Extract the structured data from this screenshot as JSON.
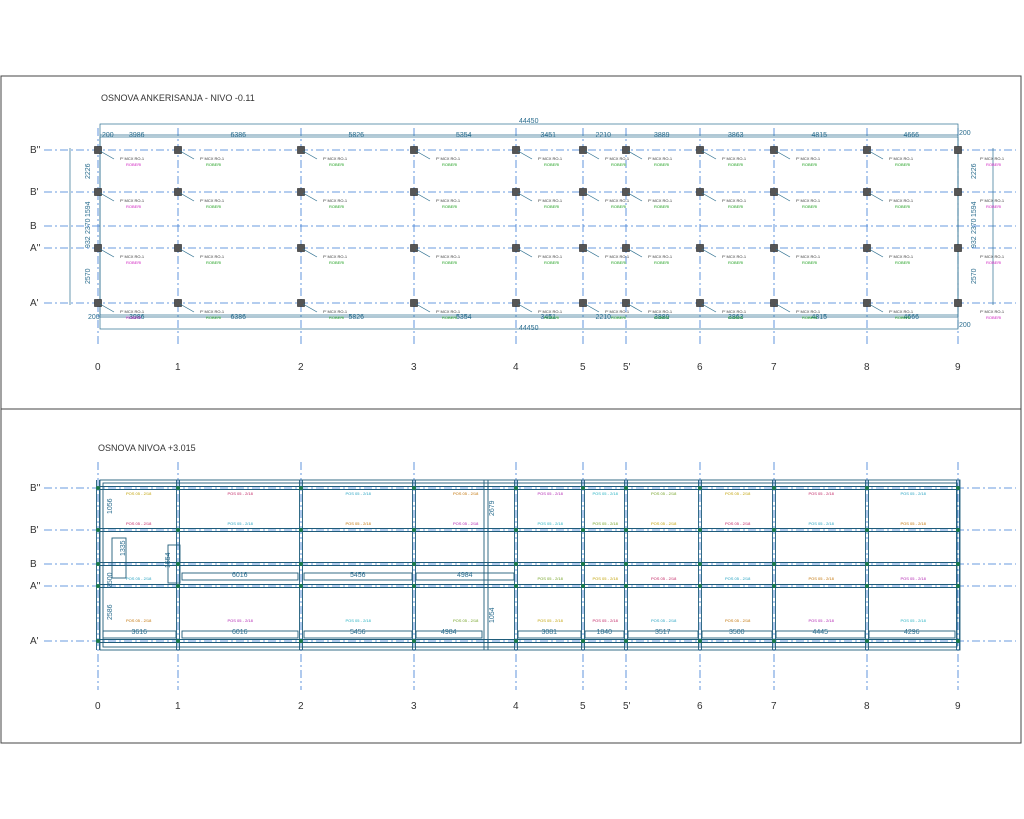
{
  "plan_top": {
    "title": "OSNOVA ANKERISANJA - NIVO  -0.11",
    "total_dim": "44450",
    "edge_dim": "200",
    "span_dims": [
      "3986",
      "6386",
      "5826",
      "5354",
      "3451",
      "2210",
      "3889",
      "3863",
      "4815",
      "4666"
    ],
    "vert_dims": [
      "2226",
      "1594",
      "2370",
      "932",
      "2570"
    ],
    "anchor_label": "P' MCX RO-1",
    "anchor_label2": "ROBERI"
  },
  "plan_bottom": {
    "title": "OSNOVA NIVOA +3.015",
    "row_dims_lower": [
      "3616",
      "6016",
      "5456",
      "4984",
      "3081",
      "1840",
      "3517",
      "3500",
      "4445",
      "4296"
    ],
    "row_dims_mid": [
      "6016",
      "5456",
      "4984"
    ],
    "vert_dims": [
      "1056",
      "1335",
      "1554",
      "2500",
      "2586",
      "2679",
      "1054"
    ],
    "beam_label": "POS 05 - 2/18"
  },
  "axes": {
    "columns": [
      "0",
      "1",
      "2",
      "3",
      "4",
      "5",
      "5'",
      "6",
      "7",
      "8",
      "9"
    ],
    "rows": [
      "B''",
      "B'",
      "B",
      "A''",
      "A'"
    ]
  }
}
